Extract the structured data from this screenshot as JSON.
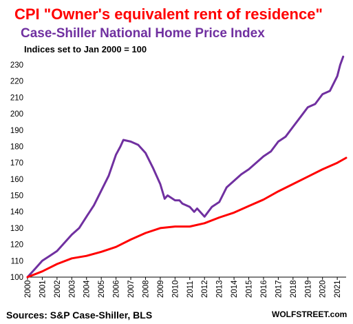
{
  "chart_data": {
    "type": "line",
    "title": "CPI \"Owner's equivalent rent of residence\"",
    "subtitle": "Case-Shiller  National  Home Price  Index",
    "note": "Indices set to Jan 2000 = 100",
    "source": "Sources: S&P Case-Shiller, BLS",
    "watermark": "WOLFSTREET.com",
    "ylim": [
      100,
      237
    ],
    "yticks": [
      "100",
      "110",
      "120",
      "130",
      "140",
      "150",
      "160",
      "170",
      "180",
      "190",
      "200",
      "210",
      "220",
      "230"
    ],
    "xticks": [
      "2000",
      "2001",
      "2002",
      "2003",
      "2004",
      "2005",
      "2006",
      "2007",
      "2008",
      "2009",
      "2010",
      "2011",
      "2012",
      "2013",
      "2014",
      "2015",
      "2016",
      "2017",
      "2018",
      "2019",
      "2020",
      "2021"
    ],
    "xlim": [
      2000,
      2021.6
    ],
    "colors": {
      "title": "#ff0000",
      "subtitle": "#7030a0",
      "cpi": "#ff0000",
      "case_shiller": "#7030a0"
    },
    "series": [
      {
        "key": "case_shiller",
        "x": [
          2000,
          2000.5,
          2001,
          2001.5,
          2002,
          2002.5,
          2003,
          2003.5,
          2004,
          2004.5,
          2005,
          2005.5,
          2006,
          2006.3,
          2006.5,
          2007,
          2007.5,
          2008,
          2008.5,
          2009,
          2009.3,
          2009.5,
          2010,
          2010.3,
          2010.5,
          2011,
          2011.3,
          2011.5,
          2012,
          2012.5,
          2013,
          2013.5,
          2014,
          2014.5,
          2015,
          2015.5,
          2016,
          2016.5,
          2017,
          2017.5,
          2018,
          2018.5,
          2019,
          2019.5,
          2020,
          2020.5,
          2021,
          2021.2,
          2021.4
        ],
        "values": [
          100,
          105,
          110,
          113,
          116,
          121,
          126,
          130,
          137,
          144,
          153,
          162,
          175,
          180,
          184,
          183,
          181,
          176,
          167,
          157,
          148,
          150,
          147,
          147,
          145,
          143,
          140,
          142,
          137,
          143,
          146,
          155,
          159,
          163,
          166,
          170,
          174,
          177,
          183,
          186,
          192,
          198,
          204,
          206,
          212,
          214,
          223,
          230,
          235
        ]
      },
      {
        "key": "cpi",
        "x": [
          2000,
          2001,
          2002,
          2003,
          2004,
          2005,
          2006,
          2007,
          2008,
          2009,
          2010,
          2011,
          2012,
          2013,
          2014,
          2015,
          2016,
          2017,
          2018,
          2019,
          2020,
          2021,
          2021.6
        ],
        "values": [
          100,
          103.5,
          108,
          111.5,
          113,
          115.5,
          118.5,
          123,
          127,
          130,
          131,
          131,
          133,
          136.5,
          139.5,
          143.5,
          147.5,
          152.5,
          157,
          161.5,
          166,
          170,
          173
        ]
      }
    ]
  }
}
